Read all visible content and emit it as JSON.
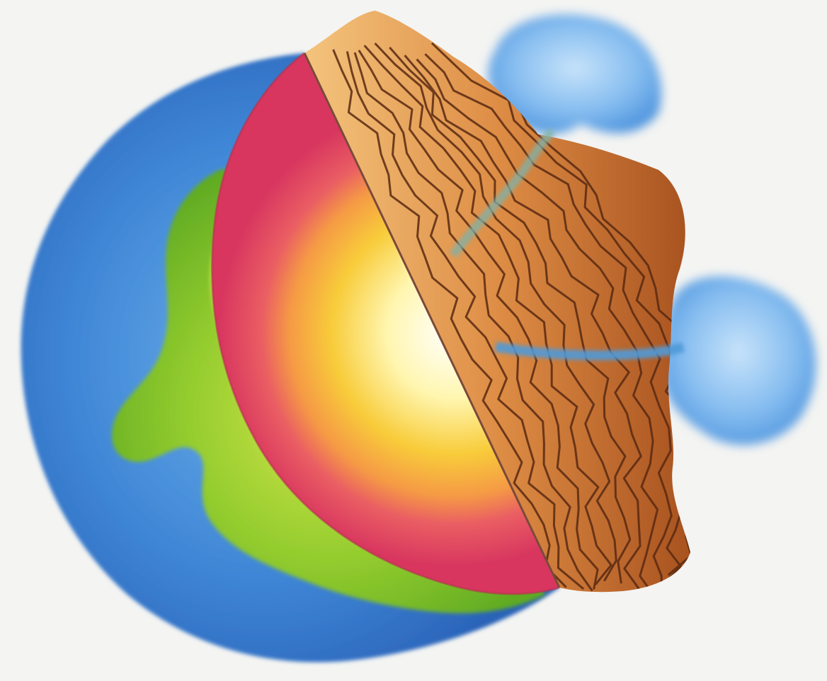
{
  "diagram": {
    "subject": "earth-cross-section",
    "labels": [],
    "colors": {
      "background": "#f4f4f2",
      "ocean_outer": "#2f74c9",
      "ocean_mid": "#4b9ae0",
      "land": "#7fc42a",
      "land_light": "#c8e04a",
      "mantle": "#e8456b",
      "mantle_inner": "#f07a55",
      "outer_core": "#f7c53a",
      "inner_core": "#fffbe0",
      "strata_dark": "#9c4a1c",
      "strata_mid": "#d98a45",
      "strata_light": "#f2c27d",
      "strata_line": "#5a2a12",
      "clouds": "#7fb8ee",
      "cloud_light": "#b9dcf8"
    }
  }
}
